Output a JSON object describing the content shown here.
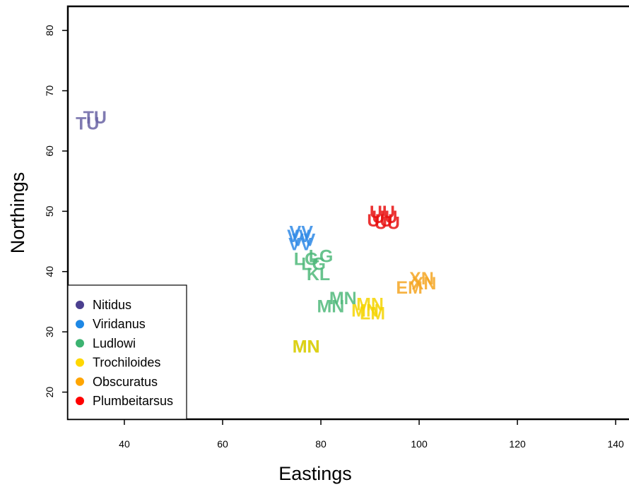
{
  "chart_data": {
    "type": "scatter",
    "xlabel": "Eastings",
    "ylabel": "Northings",
    "xlim": [
      28.5,
      143
    ],
    "ylim": [
      15.5,
      84
    ],
    "x_ticks": [
      40,
      60,
      80,
      100,
      120,
      140
    ],
    "y_ticks": [
      20,
      30,
      40,
      50,
      60,
      70,
      80
    ],
    "legend_position": "bottom-left",
    "series": [
      {
        "name": "Nitidus",
        "color": "#4b3f8f",
        "label_color": "#6a64a4",
        "points": [
          {
            "x": 34,
            "y": 65.5,
            "label": "TU"
          },
          {
            "x": 32.5,
            "y": 64.5,
            "label": "TU"
          }
        ]
      },
      {
        "name": "Viridanus",
        "color": "#1e88e5",
        "label_color": "#2f8ae6",
        "points": [
          {
            "x": 76,
            "y": 46.5,
            "label": "VV"
          },
          {
            "x": 75.5,
            "y": 45.8,
            "label": "VV"
          },
          {
            "x": 76.5,
            "y": 45.2,
            "label": "VV"
          },
          {
            "x": 75.8,
            "y": 44.5,
            "label": "VV"
          }
        ]
      },
      {
        "name": "Ludlowi",
        "color": "#3cb371",
        "label_color": "#4fb87a",
        "points": [
          {
            "x": 80,
            "y": 42.5,
            "label": "LG"
          },
          {
            "x": 77,
            "y": 42,
            "label": "LG"
          },
          {
            "x": 78.5,
            "y": 41.2,
            "label": "LG"
          },
          {
            "x": 79.5,
            "y": 39.5,
            "label": "KL"
          },
          {
            "x": 84.5,
            "y": 35.5,
            "label": "MN"
          },
          {
            "x": 82,
            "y": 34.2,
            "label": "MN"
          },
          {
            "x": 77,
            "y": 27.5,
            "label": "MN"
          }
        ]
      },
      {
        "name": "Trochiloides",
        "color": "#ffd700",
        "label_color": "#f5d300",
        "points": [
          {
            "x": 90,
            "y": 34.5,
            "label": "MN"
          },
          {
            "x": 89,
            "y": 33.5,
            "label": "MN"
          },
          {
            "x": 90.5,
            "y": 33,
            "label": "LM"
          },
          {
            "x": 77,
            "y": 27.5,
            "label": "MN"
          }
        ]
      },
      {
        "name": "Obscuratus",
        "color": "#ffa500",
        "label_color": "#f5a623",
        "points": [
          {
            "x": 100.5,
            "y": 38.8,
            "label": "XN"
          },
          {
            "x": 101,
            "y": 38,
            "label": "XN"
          },
          {
            "x": 98,
            "y": 37.3,
            "label": "EM"
          }
        ]
      },
      {
        "name": "Plumbeitarsus",
        "color": "#ff0000",
        "label_color": "#e81010",
        "points": [
          {
            "x": 92.5,
            "y": 49.8,
            "label": "UU"
          },
          {
            "x": 93,
            "y": 49,
            "label": "UU"
          },
          {
            "x": 92,
            "y": 48.4,
            "label": "UU"
          },
          {
            "x": 93.5,
            "y": 48,
            "label": "UU"
          }
        ]
      }
    ]
  }
}
